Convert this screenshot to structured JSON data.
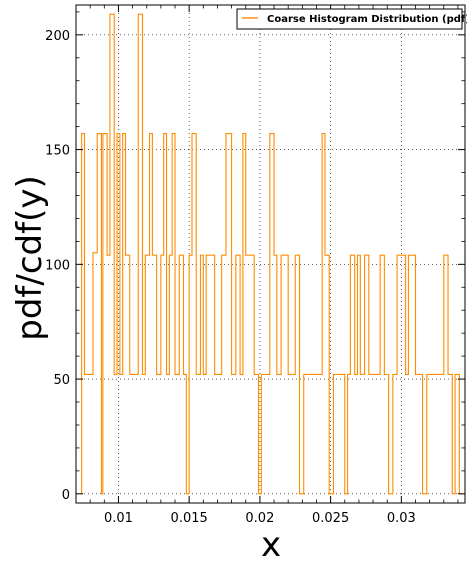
{
  "chart_data": {
    "type": "line",
    "drawstyle": "steps",
    "title": "",
    "xlabel": "x",
    "ylabel": "pdf/cdf(y)",
    "xlim": [
      0.007,
      0.0345
    ],
    "ylim": [
      -4,
      213
    ],
    "xticks": [
      0.01,
      0.015,
      0.02,
      0.025,
      0.03
    ],
    "xtick_labels": [
      "0.01",
      "0.015",
      "0.02",
      "0.025",
      "0.03"
    ],
    "yticks": [
      0,
      50,
      100,
      150,
      200
    ],
    "ytick_labels": [
      "0",
      "50",
      "100",
      "150",
      "200"
    ],
    "grid": true,
    "grid_style": "dotted",
    "legend_position": "top-right",
    "series": [
      {
        "name": "Coarse Histogram Distribution (pdf)",
        "color": "#ff8c00",
        "values": [
          [
            0.0074,
            157
          ],
          [
            0.0076,
            52
          ],
          [
            0.0082,
            105
          ],
          [
            0.0085,
            157
          ],
          [
            0.0088,
            0
          ],
          [
            0.0089,
            157
          ],
          [
            0.0092,
            104
          ],
          [
            0.0094,
            209
          ],
          [
            0.0097,
            52
          ],
          [
            0.0099,
            157
          ],
          [
            0.0101,
            52
          ],
          [
            0.0103,
            157
          ],
          [
            0.0105,
            104
          ],
          [
            0.0108,
            52
          ],
          [
            0.0111,
            52
          ],
          [
            0.0114,
            209
          ],
          [
            0.0117,
            52
          ],
          [
            0.0119,
            104
          ],
          [
            0.0122,
            157
          ],
          [
            0.0124,
            104
          ],
          [
            0.0127,
            52
          ],
          [
            0.013,
            104
          ],
          [
            0.0132,
            157
          ],
          [
            0.0134,
            52
          ],
          [
            0.0136,
            104
          ],
          [
            0.0138,
            157
          ],
          [
            0.014,
            52
          ],
          [
            0.0143,
            104
          ],
          [
            0.0146,
            52
          ],
          [
            0.0148,
            0
          ],
          [
            0.015,
            104
          ],
          [
            0.0152,
            157
          ],
          [
            0.0155,
            52
          ],
          [
            0.0158,
            104
          ],
          [
            0.016,
            52
          ],
          [
            0.0162,
            104
          ],
          [
            0.0165,
            104
          ],
          [
            0.0168,
            52
          ],
          [
            0.017,
            52
          ],
          [
            0.0173,
            104
          ],
          [
            0.0176,
            157
          ],
          [
            0.0178,
            157
          ],
          [
            0.018,
            52
          ],
          [
            0.0183,
            104
          ],
          [
            0.0186,
            52
          ],
          [
            0.0188,
            157
          ],
          [
            0.019,
            104
          ],
          [
            0.0193,
            104
          ],
          [
            0.0196,
            52
          ],
          [
            0.0199,
            0
          ],
          [
            0.0201,
            52
          ],
          [
            0.0204,
            52
          ],
          [
            0.0207,
            157
          ],
          [
            0.021,
            104
          ],
          [
            0.0212,
            52
          ],
          [
            0.0215,
            104
          ],
          [
            0.0217,
            104
          ],
          [
            0.022,
            52
          ],
          [
            0.0222,
            52
          ],
          [
            0.0225,
            104
          ],
          [
            0.0228,
            0
          ],
          [
            0.0231,
            52
          ],
          [
            0.0234,
            52
          ],
          [
            0.0236,
            52
          ],
          [
            0.0239,
            52
          ],
          [
            0.0241,
            52
          ],
          [
            0.0244,
            157
          ],
          [
            0.0246,
            104
          ],
          [
            0.0249,
            0
          ],
          [
            0.0252,
            52
          ],
          [
            0.0255,
            52
          ],
          [
            0.0258,
            52
          ],
          [
            0.026,
            0
          ],
          [
            0.0262,
            52
          ],
          [
            0.0264,
            104
          ],
          [
            0.0267,
            52
          ],
          [
            0.0269,
            104
          ],
          [
            0.0271,
            52
          ],
          [
            0.0274,
            104
          ],
          [
            0.0277,
            52
          ],
          [
            0.0279,
            52
          ],
          [
            0.0282,
            52
          ],
          [
            0.0285,
            104
          ],
          [
            0.0288,
            52
          ],
          [
            0.0291,
            0
          ],
          [
            0.0294,
            52
          ],
          [
            0.0297,
            104
          ],
          [
            0.03,
            104
          ],
          [
            0.0303,
            52
          ],
          [
            0.0305,
            104
          ],
          [
            0.0307,
            104
          ],
          [
            0.031,
            52
          ],
          [
            0.0312,
            52
          ],
          [
            0.0315,
            0
          ],
          [
            0.0318,
            52
          ],
          [
            0.032,
            52
          ],
          [
            0.0323,
            52
          ],
          [
            0.0326,
            52
          ],
          [
            0.0328,
            52
          ],
          [
            0.033,
            104
          ],
          [
            0.0333,
            52
          ],
          [
            0.0336,
            0
          ],
          [
            0.0338,
            52
          ],
          [
            0.0341,
            0
          ]
        ]
      }
    ]
  }
}
